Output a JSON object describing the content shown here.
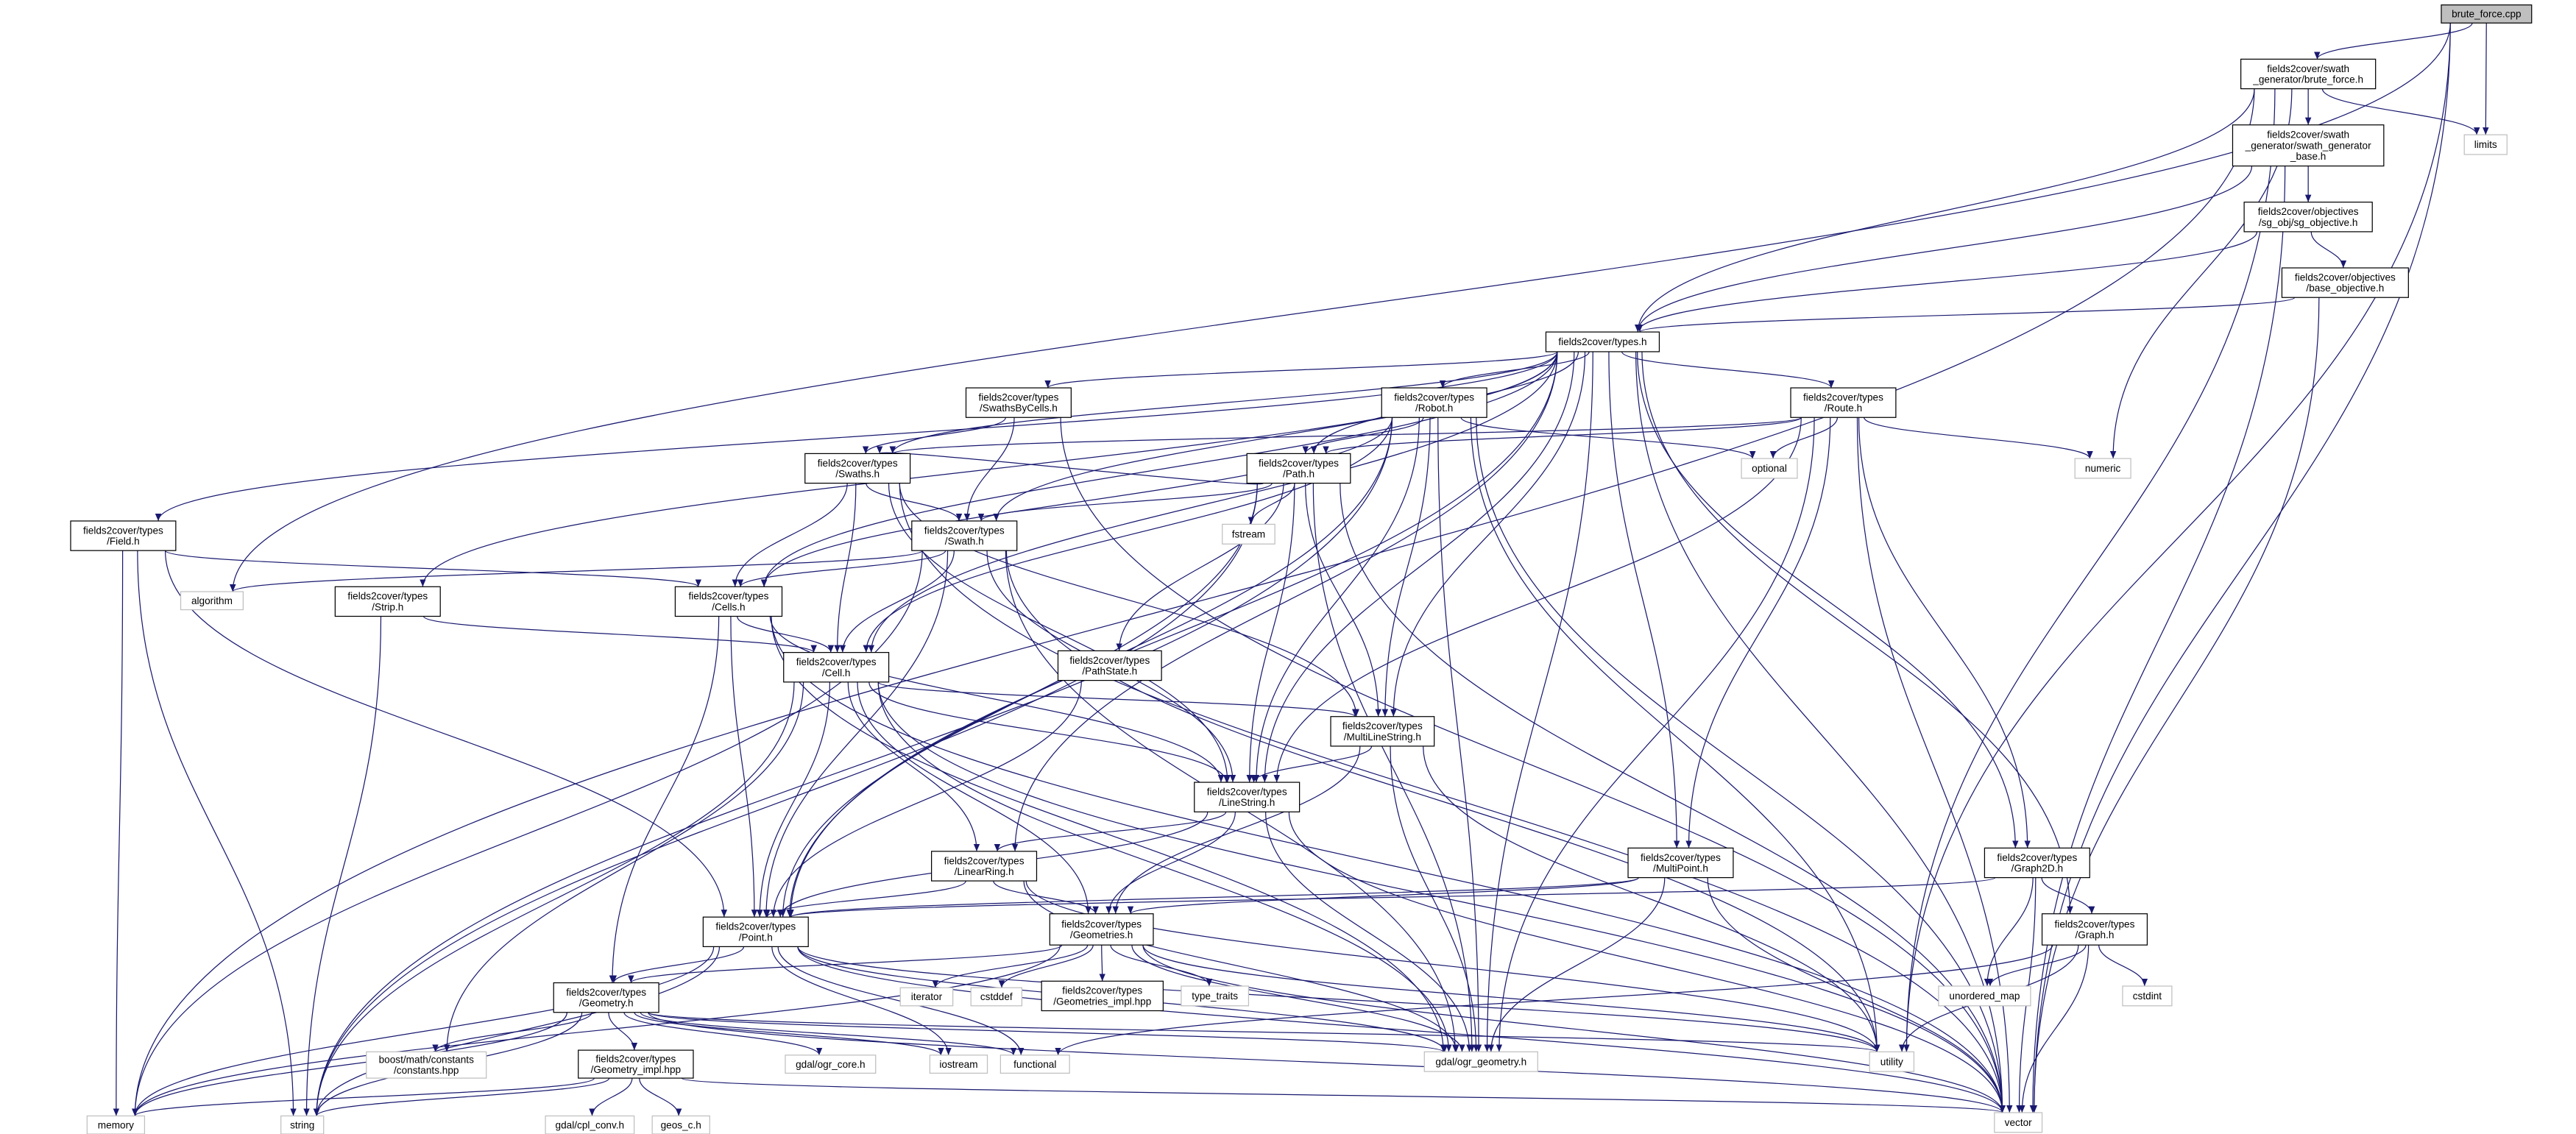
{
  "colors": {
    "edge": "#191970",
    "node_border": "#000000",
    "leaf_border": "#bfbfbf",
    "root_fill": "#bfbfbf",
    "node_fill": "#ffffff"
  },
  "graph": {
    "nodes": [
      {
        "id": "cpp",
        "kind": "root",
        "lines": [
          "brute_force.cpp"
        ]
      },
      {
        "id": "bfh",
        "kind": "file",
        "lines": [
          "fields2cover/swath",
          "_generator/brute_force.h"
        ]
      },
      {
        "id": "limits",
        "kind": "external",
        "lines": [
          "limits"
        ]
      },
      {
        "id": "sgb",
        "kind": "file",
        "lines": [
          "fields2cover/swath",
          "_generator/swath_generator",
          "_base.h"
        ]
      },
      {
        "id": "sgo",
        "kind": "file",
        "lines": [
          "fields2cover/objectives",
          "/sg_obj/sg_objective.h"
        ]
      },
      {
        "id": "bo",
        "kind": "file",
        "lines": [
          "fields2cover/objectives",
          "/base_objective.h"
        ]
      },
      {
        "id": "types",
        "kind": "file",
        "lines": [
          "fields2cover/types.h"
        ]
      },
      {
        "id": "SwathsByCells",
        "kind": "file",
        "lines": [
          "fields2cover/types",
          "/SwathsByCells.h"
        ]
      },
      {
        "id": "Robot",
        "kind": "file",
        "lines": [
          "fields2cover/types",
          "/Robot.h"
        ]
      },
      {
        "id": "Route",
        "kind": "file",
        "lines": [
          "fields2cover/types",
          "/Route.h"
        ]
      },
      {
        "id": "Swaths",
        "kind": "file",
        "lines": [
          "fields2cover/types",
          "/Swaths.h"
        ]
      },
      {
        "id": "Path",
        "kind": "file",
        "lines": [
          "fields2cover/types",
          "/Path.h"
        ]
      },
      {
        "id": "optional",
        "kind": "external",
        "lines": [
          "optional"
        ]
      },
      {
        "id": "numeric",
        "kind": "external",
        "lines": [
          "numeric"
        ]
      },
      {
        "id": "fstream",
        "kind": "external",
        "lines": [
          "fstream"
        ]
      },
      {
        "id": "Field",
        "kind": "file",
        "lines": [
          "fields2cover/types",
          "/Field.h"
        ]
      },
      {
        "id": "Swath",
        "kind": "file",
        "lines": [
          "fields2cover/types",
          "/Swath.h"
        ]
      },
      {
        "id": "algorithm",
        "kind": "external",
        "lines": [
          "algorithm"
        ]
      },
      {
        "id": "Strip",
        "kind": "file",
        "lines": [
          "fields2cover/types",
          "/Strip.h"
        ]
      },
      {
        "id": "Cells",
        "kind": "file",
        "lines": [
          "fields2cover/types",
          "/Cells.h"
        ]
      },
      {
        "id": "Cell",
        "kind": "file",
        "lines": [
          "fields2cover/types",
          "/Cell.h"
        ]
      },
      {
        "id": "PathState",
        "kind": "file",
        "lines": [
          "fields2cover/types",
          "/PathState.h"
        ]
      },
      {
        "id": "MultiLineString",
        "kind": "file",
        "lines": [
          "fields2cover/types",
          "/MultiLineString.h"
        ]
      },
      {
        "id": "LineString",
        "kind": "file",
        "lines": [
          "fields2cover/types",
          "/LineString.h"
        ]
      },
      {
        "id": "LinearRing",
        "kind": "file",
        "lines": [
          "fields2cover/types",
          "/LinearRing.h"
        ]
      },
      {
        "id": "MultiPoint",
        "kind": "file",
        "lines": [
          "fields2cover/types",
          "/MultiPoint.h"
        ]
      },
      {
        "id": "Graph2D",
        "kind": "file",
        "lines": [
          "fields2cover/types",
          "/Graph2D.h"
        ]
      },
      {
        "id": "Point",
        "kind": "file",
        "lines": [
          "fields2cover/types",
          "/Point.h"
        ]
      },
      {
        "id": "Geometries",
        "kind": "file",
        "lines": [
          "fields2cover/types",
          "/Geometries.h"
        ]
      },
      {
        "id": "Graph",
        "kind": "file",
        "lines": [
          "fields2cover/types",
          "/Graph.h"
        ]
      },
      {
        "id": "Geometry",
        "kind": "file",
        "lines": [
          "fields2cover/types",
          "/Geometry.h"
        ]
      },
      {
        "id": "Geometries_impl",
        "kind": "file",
        "lines": [
          "fields2cover/types",
          "/Geometries_impl.hpp"
        ]
      },
      {
        "id": "iterator",
        "kind": "external",
        "lines": [
          "iterator"
        ]
      },
      {
        "id": "cstddef",
        "kind": "external",
        "lines": [
          "cstddef"
        ]
      },
      {
        "id": "type_traits",
        "kind": "external",
        "lines": [
          "type_traits"
        ]
      },
      {
        "id": "unordered_map",
        "kind": "external",
        "lines": [
          "unordered_map"
        ]
      },
      {
        "id": "cstdint",
        "kind": "external",
        "lines": [
          "cstdint"
        ]
      },
      {
        "id": "boost",
        "kind": "external",
        "lines": [
          "boost/math/constants",
          "/constants.hpp"
        ]
      },
      {
        "id": "Geometry_impl",
        "kind": "file",
        "lines": [
          "fields2cover/types",
          "/Geometry_impl.hpp"
        ]
      },
      {
        "id": "ogr_core",
        "kind": "external",
        "lines": [
          "gdal/ogr_core.h"
        ]
      },
      {
        "id": "iostream",
        "kind": "external",
        "lines": [
          "iostream"
        ]
      },
      {
        "id": "functional",
        "kind": "external",
        "lines": [
          "functional"
        ]
      },
      {
        "id": "ogr_geometry",
        "kind": "external",
        "lines": [
          "gdal/ogr_geometry.h"
        ]
      },
      {
        "id": "utility",
        "kind": "external",
        "lines": [
          "utility"
        ]
      },
      {
        "id": "memory",
        "kind": "external",
        "lines": [
          "memory"
        ]
      },
      {
        "id": "string",
        "kind": "external",
        "lines": [
          "string"
        ]
      },
      {
        "id": "cpl_conv",
        "kind": "external",
        "lines": [
          "gdal/cpl_conv.h"
        ]
      },
      {
        "id": "geos_c",
        "kind": "external",
        "lines": [
          "geos_c.h"
        ]
      },
      {
        "id": "vector",
        "kind": "external",
        "lines": [
          "vector"
        ]
      }
    ],
    "edges": [
      [
        "cpp",
        "bfh"
      ],
      [
        "cpp",
        "limits"
      ],
      [
        "cpp",
        "utility"
      ],
      [
        "cpp",
        "vector"
      ],
      [
        "cpp",
        "algorithm"
      ],
      [
        "bfh",
        "sgb"
      ],
      [
        "bfh",
        "limits"
      ],
      [
        "bfh",
        "types"
      ],
      [
        "bfh",
        "memory"
      ],
      [
        "bfh",
        "numeric"
      ],
      [
        "bfh",
        "utility"
      ],
      [
        "sgb",
        "sgo"
      ],
      [
        "sgb",
        "types"
      ],
      [
        "sgb",
        "vector"
      ],
      [
        "sgo",
        "bo"
      ],
      [
        "sgo",
        "types"
      ],
      [
        "bo",
        "types"
      ],
      [
        "bo",
        "vector"
      ],
      [
        "types",
        "Field"
      ],
      [
        "types",
        "Strip"
      ],
      [
        "types",
        "Cells"
      ],
      [
        "types",
        "Cell"
      ],
      [
        "types",
        "Swath"
      ],
      [
        "types",
        "Swaths"
      ],
      [
        "types",
        "SwathsByCells"
      ],
      [
        "types",
        "Robot"
      ],
      [
        "types",
        "Path"
      ],
      [
        "types",
        "Route"
      ],
      [
        "types",
        "Point"
      ],
      [
        "types",
        "LinearRing"
      ],
      [
        "types",
        "LineString"
      ],
      [
        "types",
        "MultiLineString"
      ],
      [
        "types",
        "MultiPoint"
      ],
      [
        "types",
        "Graph2D"
      ],
      [
        "types",
        "Graph"
      ],
      [
        "types",
        "ogr_geometry"
      ],
      [
        "types",
        "vector"
      ],
      [
        "Field",
        "Cells"
      ],
      [
        "Field",
        "Point"
      ],
      [
        "Field",
        "memory"
      ],
      [
        "Field",
        "string"
      ],
      [
        "Strip",
        "Cell"
      ],
      [
        "Strip",
        "string"
      ],
      [
        "Cells",
        "Cell"
      ],
      [
        "Cells",
        "Point"
      ],
      [
        "Cells",
        "LineString"
      ],
      [
        "Cells",
        "Geometry"
      ],
      [
        "Cells",
        "ogr_geometry"
      ],
      [
        "Cells",
        "vector"
      ],
      [
        "Cell",
        "Point"
      ],
      [
        "Cell",
        "LineString"
      ],
      [
        "Cell",
        "LinearRing"
      ],
      [
        "Cell",
        "MultiLineString"
      ],
      [
        "Cell",
        "Geometries"
      ],
      [
        "Cell",
        "ogr_geometry"
      ],
      [
        "Cell",
        "string"
      ],
      [
        "Cell",
        "boost"
      ],
      [
        "Cell",
        "vector"
      ],
      [
        "Swaths",
        "Swath"
      ],
      [
        "Swaths",
        "Cells"
      ],
      [
        "Swaths",
        "Cell"
      ],
      [
        "Swaths",
        "LineString"
      ],
      [
        "Swaths",
        "MultiLineString"
      ],
      [
        "Swaths",
        "vector"
      ],
      [
        "Swath",
        "Cells"
      ],
      [
        "Swath",
        "Cell"
      ],
      [
        "Swath",
        "LineString"
      ],
      [
        "Swath",
        "Point"
      ],
      [
        "Swath",
        "memory"
      ],
      [
        "Swath",
        "algorithm"
      ],
      [
        "Swath",
        "ogr_geometry"
      ],
      [
        "Swath",
        "utility"
      ],
      [
        "SwathsByCells",
        "Swaths"
      ],
      [
        "SwathsByCells",
        "Swath"
      ],
      [
        "SwathsByCells",
        "vector"
      ],
      [
        "Robot",
        "Path"
      ],
      [
        "Robot",
        "Cells"
      ],
      [
        "Robot",
        "Cell"
      ],
      [
        "Robot",
        "Point"
      ],
      [
        "Robot",
        "LineString"
      ],
      [
        "Robot",
        "MultiLineString"
      ],
      [
        "Robot",
        "ogr_geometry"
      ],
      [
        "Robot",
        "string"
      ],
      [
        "Robot",
        "optional"
      ],
      [
        "Robot",
        "utility"
      ],
      [
        "Robot",
        "vector"
      ],
      [
        "Path",
        "Swath"
      ],
      [
        "Path",
        "Swaths"
      ],
      [
        "Path",
        "PathState"
      ],
      [
        "Path",
        "fstream"
      ],
      [
        "Path",
        "Point"
      ],
      [
        "Path",
        "LineString"
      ],
      [
        "Path",
        "MultiLineString"
      ],
      [
        "Path",
        "ogr_geometry"
      ],
      [
        "Path",
        "string"
      ],
      [
        "Path",
        "vector"
      ],
      [
        "Route",
        "Path"
      ],
      [
        "Route",
        "Swaths"
      ],
      [
        "Route",
        "Graph2D"
      ],
      [
        "Route",
        "MultiPoint"
      ],
      [
        "Route",
        "LineString"
      ],
      [
        "Route",
        "optional"
      ],
      [
        "Route",
        "numeric"
      ],
      [
        "Route",
        "ogr_geometry"
      ],
      [
        "Route",
        "vector"
      ],
      [
        "PathState",
        "Point"
      ],
      [
        "MultiLineString",
        "LineString"
      ],
      [
        "MultiLineString",
        "Geometries"
      ],
      [
        "MultiLineString",
        "ogr_geometry"
      ],
      [
        "MultiLineString",
        "utility"
      ],
      [
        "LineString",
        "Point"
      ],
      [
        "LineString",
        "LinearRing"
      ],
      [
        "LineString",
        "Geometries"
      ],
      [
        "LineString",
        "ogr_geometry"
      ],
      [
        "LineString",
        "vector"
      ],
      [
        "LinearRing",
        "Point"
      ],
      [
        "LinearRing",
        "Geometries"
      ],
      [
        "LinearRing",
        "ogr_geometry"
      ],
      [
        "LinearRing",
        "utility"
      ],
      [
        "MultiPoint",
        "Point"
      ],
      [
        "MultiPoint",
        "Geometries"
      ],
      [
        "MultiPoint",
        "ogr_geometry"
      ],
      [
        "MultiPoint",
        "vector"
      ],
      [
        "Graph2D",
        "Point"
      ],
      [
        "Graph2D",
        "Graph"
      ],
      [
        "Graph2D",
        "unordered_map"
      ],
      [
        "Graph2D",
        "vector"
      ],
      [
        "Graph",
        "unordered_map"
      ],
      [
        "Graph",
        "cstdint"
      ],
      [
        "Graph",
        "utility"
      ],
      [
        "Graph",
        "vector"
      ],
      [
        "Graph",
        "functional"
      ],
      [
        "Point",
        "Geometry"
      ],
      [
        "Point",
        "memory"
      ],
      [
        "Point",
        "iostream"
      ],
      [
        "Point",
        "functional"
      ],
      [
        "Point",
        "utility"
      ],
      [
        "Point",
        "vector"
      ],
      [
        "Point",
        "ogr_geometry"
      ],
      [
        "Point",
        "string"
      ],
      [
        "Geometries",
        "Geometry"
      ],
      [
        "Geometries",
        "Geometries_impl"
      ],
      [
        "Geometries",
        "iterator"
      ],
      [
        "Geometries",
        "cstddef"
      ],
      [
        "Geometries",
        "type_traits"
      ],
      [
        "Geometries",
        "memory"
      ],
      [
        "Geometries",
        "ogr_geometry"
      ],
      [
        "Geometries",
        "utility"
      ],
      [
        "Geometries",
        "vector"
      ],
      [
        "Geometry",
        "boost"
      ],
      [
        "Geometry",
        "Geometry_impl"
      ],
      [
        "Geometry",
        "ogr_core"
      ],
      [
        "Geometry",
        "iostream"
      ],
      [
        "Geometry",
        "functional"
      ],
      [
        "Geometry",
        "memory"
      ],
      [
        "Geometry",
        "string"
      ],
      [
        "Geometry",
        "ogr_geometry"
      ],
      [
        "Geometry",
        "utility"
      ],
      [
        "Geometry",
        "vector"
      ],
      [
        "Geometry_impl",
        "cpl_conv"
      ],
      [
        "Geometry_impl",
        "geos_c"
      ],
      [
        "Geometry_impl",
        "memory"
      ],
      [
        "Geometry_impl",
        "string"
      ],
      [
        "Geometry_impl",
        "vector"
      ]
    ]
  }
}
